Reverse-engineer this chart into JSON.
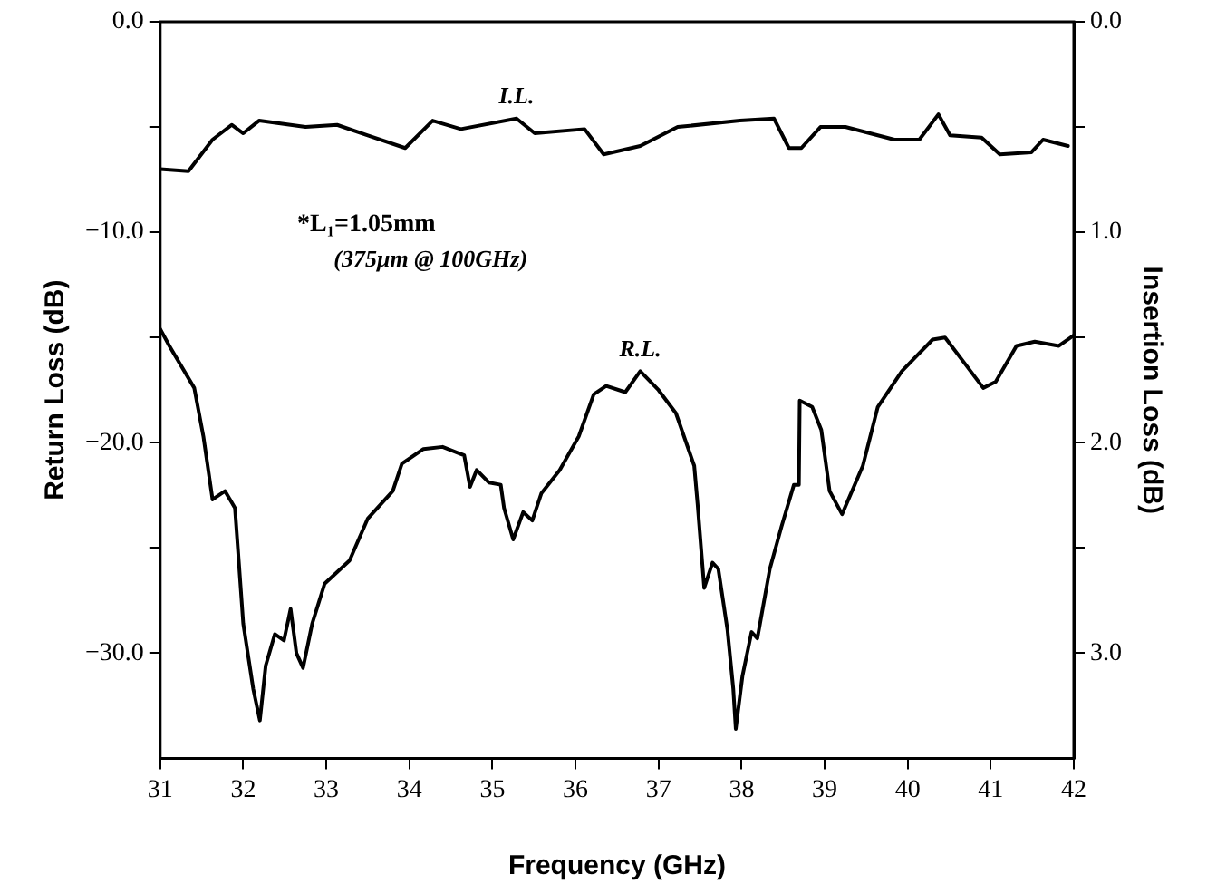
{
  "chart_data": {
    "type": "line",
    "xlabel": "Frequency (GHz)",
    "ylabel": "Return Loss (dB)",
    "y2label": "Insertion Loss (dB)",
    "xlim": [
      31,
      42
    ],
    "xticks": [
      31,
      32,
      33,
      34,
      35,
      36,
      37,
      38,
      39,
      40,
      41,
      42
    ],
    "ylim": [
      -35,
      0
    ],
    "yticks": [
      {
        "value": 0,
        "label": "0.0"
      },
      {
        "value": -5,
        "label": null
      },
      {
        "value": -10,
        "label": "−10.0"
      },
      {
        "value": -15,
        "label": null
      },
      {
        "value": -20,
        "label": "−20.0"
      },
      {
        "value": -25,
        "label": null
      },
      {
        "value": -30,
        "label": "−30.0"
      }
    ],
    "y2lim": [
      3.5,
      0
    ],
    "y2ticks": [
      {
        "value": 0,
        "label": "0.0"
      },
      {
        "value": 0.5,
        "label": null
      },
      {
        "value": 1,
        "label": "1.0"
      },
      {
        "value": 1.5,
        "label": null
      },
      {
        "value": 2,
        "label": "2.0"
      },
      {
        "value": 2.5,
        "label": null
      },
      {
        "value": 3,
        "label": "3.0"
      }
    ],
    "grid": false,
    "legend": false,
    "marker": "none",
    "line_style": "solid",
    "annotations": [
      "*L₁=1.05mm",
      "(375μm @ 100GHz)"
    ],
    "series": [
      {
        "name": "I.L.",
        "color": "#000000",
        "axis": "y2",
        "x": [
          31.0,
          31.34,
          31.63,
          31.86,
          32.0,
          32.19,
          32.75,
          33.13,
          33.5,
          33.95,
          34.28,
          34.62,
          35.29,
          35.51,
          36.11,
          36.34,
          36.78,
          37.23,
          37.98,
          38.39,
          38.57,
          38.72,
          38.95,
          39.25,
          39.84,
          40.14,
          40.37,
          40.51,
          40.89,
          41.11,
          41.49,
          41.63,
          41.93
        ],
        "values": [
          0.7,
          0.71,
          0.56,
          0.49,
          0.53,
          0.47,
          0.5,
          0.49,
          0.54,
          0.6,
          0.47,
          0.51,
          0.46,
          0.53,
          0.51,
          0.63,
          0.59,
          0.5,
          0.47,
          0.46,
          0.6,
          0.6,
          0.5,
          0.5,
          0.56,
          0.56,
          0.44,
          0.54,
          0.55,
          0.63,
          0.62,
          0.56,
          0.59
        ]
      },
      {
        "name": "R.L.",
        "color": "#000000",
        "x": [
          31.0,
          31.11,
          31.41,
          31.52,
          31.63,
          31.78,
          31.9,
          32.0,
          32.12,
          32.2,
          32.27,
          32.38,
          32.49,
          32.57,
          32.64,
          32.72,
          32.83,
          32.98,
          33.28,
          33.5,
          33.8,
          33.91,
          34.17,
          34.4,
          34.66,
          34.73,
          34.81,
          34.96,
          35.1,
          35.14,
          35.25,
          35.37,
          35.48,
          35.59,
          35.81,
          36.04,
          36.22,
          36.37,
          36.6,
          36.78,
          37.0,
          37.21,
          37.43,
          37.47,
          37.55,
          37.65,
          37.72,
          37.83,
          37.9,
          37.93,
          38.01,
          38.12,
          38.19,
          38.34,
          38.48,
          38.63,
          38.69,
          38.7,
          38.85,
          38.96,
          39.06,
          39.21,
          39.46,
          39.64,
          39.93,
          40.3,
          40.45,
          40.7,
          40.91,
          41.06,
          41.31,
          41.53,
          41.82,
          42.0
        ],
        "values": [
          -14.6,
          -15.4,
          -17.4,
          -19.7,
          -22.7,
          -22.3,
          -23.1,
          -28.6,
          -31.7,
          -33.2,
          -30.6,
          -29.1,
          -29.4,
          -27.9,
          -30.0,
          -30.7,
          -28.6,
          -26.7,
          -25.6,
          -23.6,
          -22.3,
          -21.0,
          -20.3,
          -20.2,
          -20.6,
          -22.1,
          -21.3,
          -21.9,
          -22.0,
          -23.1,
          -24.6,
          -23.3,
          -23.7,
          -22.4,
          -21.3,
          -19.7,
          -17.7,
          -17.3,
          -17.6,
          -16.6,
          -17.5,
          -18.6,
          -21.1,
          -22.9,
          -26.9,
          -25.7,
          -26.0,
          -28.9,
          -31.7,
          -33.6,
          -31.1,
          -29.0,
          -29.3,
          -26.0,
          -24.0,
          -22.0,
          -22.0,
          -18.0,
          -18.3,
          -19.4,
          -22.3,
          -23.4,
          -21.1,
          -18.3,
          -16.6,
          -15.1,
          -15.0,
          -16.3,
          -17.4,
          -17.1,
          -15.4,
          -15.2,
          -15.4,
          -14.9
        ]
      }
    ]
  }
}
